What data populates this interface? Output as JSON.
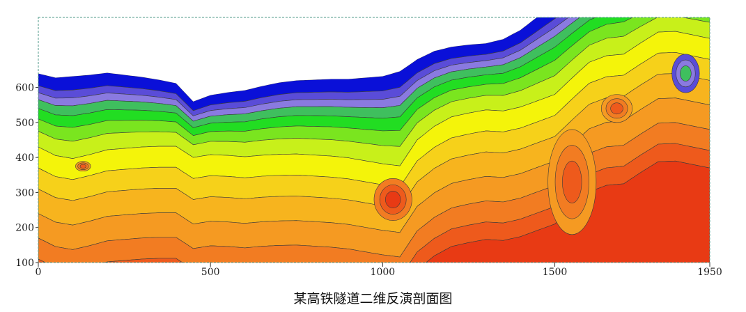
{
  "chart_data": {
    "type": "heatmap",
    "title": "某高铁隧道二维反演剖面图",
    "xlabel": "",
    "ylabel": "",
    "x_ticks": [
      0,
      500,
      1000,
      1500,
      1950
    ],
    "y_ticks": [
      100,
      200,
      300,
      400,
      500,
      600
    ],
    "xlim": [
      0,
      1950
    ],
    "ylim": [
      100,
      800
    ],
    "colormap": [
      "#0a10d8",
      "#5a4cd8",
      "#8a7ae0",
      "#3fbf5e",
      "#22dd22",
      "#7ae51f",
      "#c8f01a",
      "#f4f40a",
      "#f6d11a",
      "#f7b41e",
      "#f59a22",
      "#f27c22",
      "#ee5a1c",
      "#e83a14"
    ],
    "surface_profile": [
      [
        0,
        640
      ],
      [
        50,
        628
      ],
      [
        100,
        632
      ],
      [
        150,
        636
      ],
      [
        200,
        642
      ],
      [
        250,
        636
      ],
      [
        300,
        630
      ],
      [
        350,
        622
      ],
      [
        400,
        612
      ],
      [
        450,
        560
      ],
      [
        500,
        578
      ],
      [
        550,
        586
      ],
      [
        600,
        592
      ],
      [
        650,
        604
      ],
      [
        700,
        614
      ],
      [
        750,
        620
      ],
      [
        800,
        622
      ],
      [
        850,
        624
      ],
      [
        900,
        624
      ],
      [
        950,
        628
      ],
      [
        1000,
        632
      ],
      [
        1050,
        646
      ],
      [
        1100,
        680
      ],
      [
        1150,
        704
      ],
      [
        1200,
        716
      ],
      [
        1250,
        722
      ],
      [
        1300,
        726
      ],
      [
        1350,
        738
      ],
      [
        1400,
        764
      ],
      [
        1450,
        802
      ],
      [
        1500,
        840
      ],
      [
        1550,
        872
      ],
      [
        1600,
        902
      ],
      [
        1650,
        928
      ],
      [
        1700,
        940
      ],
      [
        1750,
        950
      ],
      [
        1800,
        958
      ],
      [
        1850,
        965
      ],
      [
        1900,
        960
      ],
      [
        1950,
        955
      ]
    ],
    "band_depths": [
      35,
      55,
      75,
      100,
      130,
      165,
      210,
      270,
      330,
      400,
      470,
      530,
      580
    ],
    "band_modulation": [
      [
        0,
        0
      ],
      [
        100,
        25
      ],
      [
        200,
        10
      ],
      [
        300,
        -10
      ],
      [
        400,
        -30
      ],
      [
        450,
        -50
      ],
      [
        500,
        -40
      ],
      [
        600,
        -20
      ],
      [
        700,
        -5
      ],
      [
        800,
        5
      ],
      [
        900,
        15
      ],
      [
        1000,
        40
      ],
      [
        1050,
        60
      ],
      [
        1100,
        20
      ],
      [
        1200,
        -10
      ],
      [
        1300,
        -20
      ],
      [
        1400,
        10
      ],
      [
        1500,
        50
      ],
      [
        1600,
        20
      ],
      [
        1700,
        35
      ],
      [
        1800,
        -10
      ],
      [
        1900,
        0
      ],
      [
        1950,
        5
      ]
    ],
    "anomalies": [
      {
        "x": 1030,
        "y": 280,
        "rx": 55,
        "ry": 60,
        "level": 13
      },
      {
        "x": 1550,
        "y": 330,
        "rx": 70,
        "ry": 150,
        "level": 12
      },
      {
        "x": 1680,
        "y": 540,
        "rx": 45,
        "ry": 40,
        "level": 12
      },
      {
        "x": 130,
        "y": 375,
        "rx": 22,
        "ry": 14,
        "level": 12
      },
      {
        "x": 1880,
        "y": 640,
        "rx": 40,
        "ry": 55,
        "level": 3
      }
    ]
  }
}
